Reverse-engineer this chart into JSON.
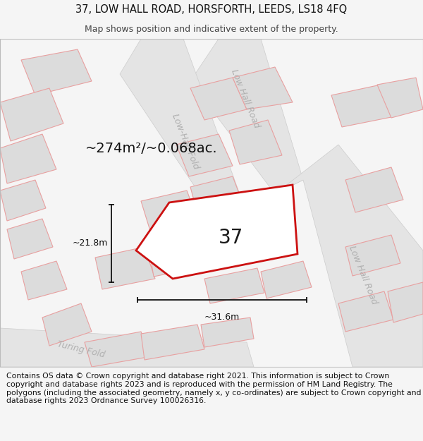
{
  "title_line1": "37, LOW HALL ROAD, HORSFORTH, LEEDS, LS18 4FQ",
  "title_line2": "Map shows position and indicative extent of the property.",
  "copyright_text": "Contains OS data © Crown copyright and database right 2021. This information is subject to Crown copyright and database rights 2023 and is reproduced with the permission of HM Land Registry. The polygons (including the associated geometry, namely x, y co-ordinates) are subject to Crown copyright and database rights 2023 Ordnance Survey 100026316.",
  "area_label": "~274m²/~0.068ac.",
  "number_label": "37",
  "dim_v_label": "~21.8m",
  "dim_h_label": "~31.6m",
  "road_label_top": "Low Hall Road",
  "road_label_mid": "Low-Hall Fold",
  "road_label_right": "Low Hall Road",
  "road_label_bottom": "Turing Fold",
  "bg_color": "#f5f5f5",
  "map_bg": "#f0efef",
  "building_fill": "#dcdcdc",
  "building_stroke": "#e8a0a0",
  "road_fill": "#e8e8e8",
  "subject_fill": "#ffffff",
  "subject_stroke": "#cc1111",
  "dim_color": "#111111",
  "road_text_color": "#b0b0b0",
  "area_text_color": "#111111",
  "title_color": "#111111",
  "copy_color": "#111111",
  "title_fontsize": 10.5,
  "subtitle_fontsize": 9,
  "copyright_fontsize": 7.8,
  "area_fontsize": 14,
  "number_fontsize": 20,
  "dim_fontsize": 9,
  "road_fontsize": 9
}
